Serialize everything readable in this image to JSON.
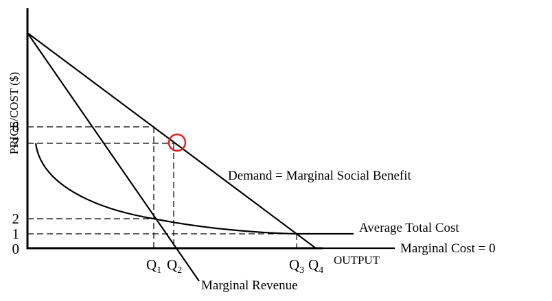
{
  "axes": {
    "y_label": "PRICE/COST ($)",
    "x_label": "OUTPUT",
    "origin": "0"
  },
  "y_ticks": [
    "8",
    "7",
    "2",
    "1"
  ],
  "x_ticks": [
    {
      "main": "Q",
      "sub": "1"
    },
    {
      "main": "Q",
      "sub": "2"
    },
    {
      "main": "Q",
      "sub": "3"
    },
    {
      "main": "Q",
      "sub": "4"
    }
  ],
  "curves": {
    "demand": "Demand = Marginal Social Benefit",
    "marginal_revenue": "Marginal Revenue",
    "average_total_cost": "Average Total Cost",
    "marginal_cost": "Marginal Cost = 0"
  },
  "highlight_color": "#e02020"
}
